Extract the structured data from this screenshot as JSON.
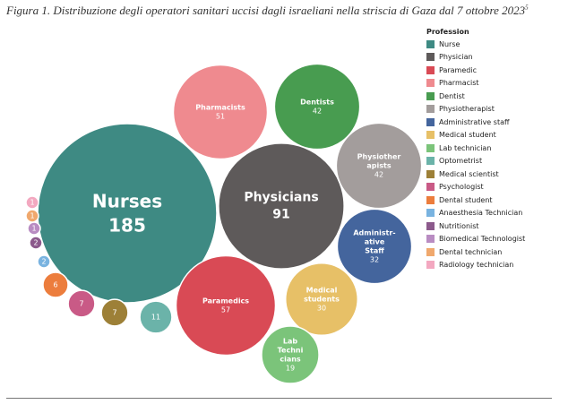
{
  "caption": {
    "text": "Figura 1. Distribuzione degli operatori sanitari uccisi dagli israeliani nella striscia di Gaza dal 7 ottobre 2023",
    "note": "5"
  },
  "chart_data": {
    "type": "packed-bubble",
    "legend": {
      "title": "Profession",
      "placement": "right",
      "items": [
        {
          "label": "Nurse",
          "color": "#3e8a83"
        },
        {
          "label": "Physician",
          "color": "#5e5a5a"
        },
        {
          "label": "Paramedic",
          "color": "#d94a55"
        },
        {
          "label": "Pharmacist",
          "color": "#ef8a8f"
        },
        {
          "label": "Dentist",
          "color": "#489c50"
        },
        {
          "label": "Physiotherapist",
          "color": "#a39d9c"
        },
        {
          "label": "Administrative staff",
          "color": "#44659d"
        },
        {
          "label": "Medical student",
          "color": "#e7c067"
        },
        {
          "label": "Lab technician",
          "color": "#7bc47a"
        },
        {
          "label": "Optometrist",
          "color": "#6bb3a9"
        },
        {
          "label": "Medical scientist",
          "color": "#9d8037"
        },
        {
          "label": "Psychologist",
          "color": "#c95a86"
        },
        {
          "label": "Dental student",
          "color": "#ec7d3d"
        },
        {
          "label": "Anaesthesia Technician",
          "color": "#79b3e0"
        },
        {
          "label": "Nutritionist",
          "color": "#8c5a8c"
        },
        {
          "label": "Biomedical Technologist",
          "color": "#b98cc2"
        },
        {
          "label": "Dental technician",
          "color": "#f0a86d"
        },
        {
          "label": "Radiology technician",
          "color": "#f3a8c0"
        }
      ]
    },
    "bubbles": [
      {
        "profession": "Nurse",
        "lines": [
          "Nurses"
        ],
        "value": 185
      },
      {
        "profession": "Physician",
        "lines": [
          "Physicians"
        ],
        "value": 91
      },
      {
        "profession": "Paramedic",
        "lines": [
          "Paramedics"
        ],
        "value": 57
      },
      {
        "profession": "Pharmacist",
        "lines": [
          "Pharmacists"
        ],
        "value": 51
      },
      {
        "profession": "Dentist",
        "lines": [
          "Dentists"
        ],
        "value": 42
      },
      {
        "profession": "Physiotherapist",
        "lines": [
          "Physiother",
          "apists"
        ],
        "value": 42
      },
      {
        "profession": "Administrative staff",
        "lines": [
          "Administr-",
          "ative",
          "Staff"
        ],
        "value": 32
      },
      {
        "profession": "Medical student",
        "lines": [
          "Medical",
          "students"
        ],
        "value": 30
      },
      {
        "profession": "Lab technician",
        "lines": [
          "Lab",
          "Techni",
          "cians"
        ],
        "value": 19
      },
      {
        "profession": "Optometrist",
        "lines": [],
        "value": 11
      },
      {
        "profession": "Medical scientist",
        "lines": [],
        "value": 7
      },
      {
        "profession": "Psychologist",
        "lines": [],
        "value": 7
      },
      {
        "profession": "Dental student",
        "lines": [],
        "value": 6
      },
      {
        "profession": "Anaesthesia Technician",
        "lines": [],
        "value": 2
      },
      {
        "profession": "Nutritionist",
        "lines": [],
        "value": 2
      },
      {
        "profession": "Biomedical Technologist",
        "lines": [],
        "value": 1
      },
      {
        "profession": "Dental technician",
        "lines": [],
        "value": 1
      },
      {
        "profession": "Radiology technician",
        "lines": [],
        "value": 1
      }
    ]
  }
}
